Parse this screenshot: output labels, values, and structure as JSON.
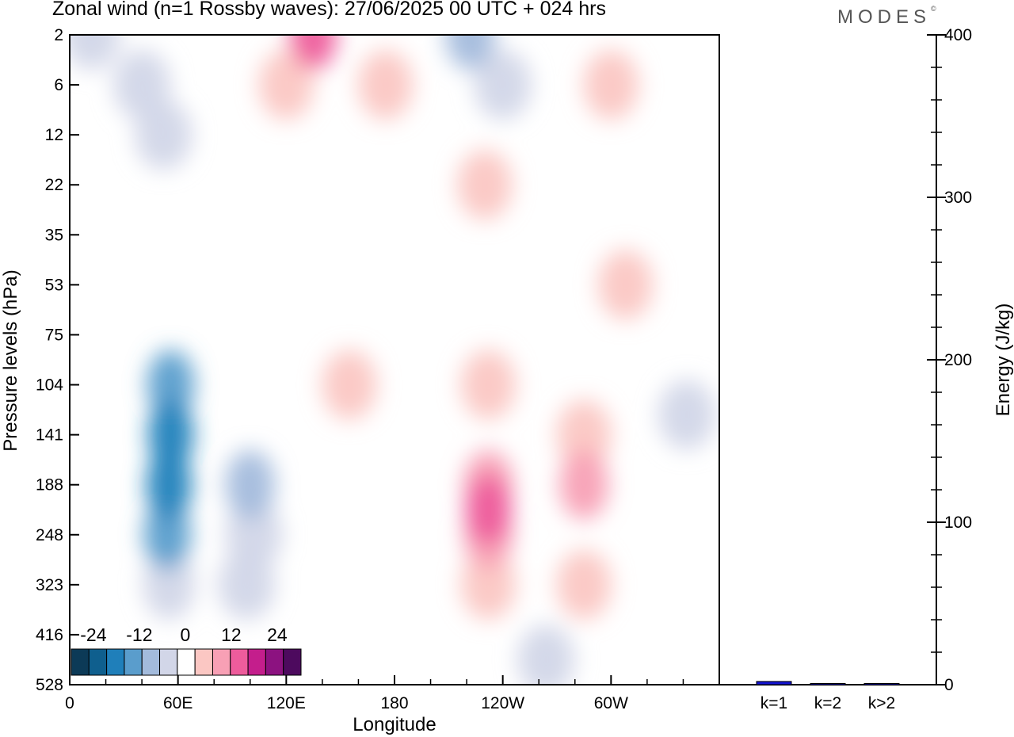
{
  "header": {
    "title": "Zonal wind (n=1 Rossby waves):  27/06/2025  00 UTC  + 024 hrs",
    "logo": "MODES",
    "logo_mark": "©"
  },
  "chart_data": [
    {
      "type": "heatmap",
      "title": "Zonal wind (n=1 Rossby waves):  27/06/2025  00 UTC  + 024 hrs",
      "xlabel": "Longitude",
      "ylabel": "Pressure levels (hPa)",
      "x_ticks": [
        "0",
        "60E",
        "120E",
        "180",
        "120W",
        "60W"
      ],
      "x_tick_values": [
        0,
        60,
        120,
        180,
        240,
        300
      ],
      "xlim": [
        0,
        360
      ],
      "y_ticks": [
        "2",
        "6",
        "12",
        "22",
        "35",
        "53",
        "75",
        "104",
        "141",
        "188",
        "248",
        "323",
        "416",
        "528"
      ],
      "y_scale": "level-index",
      "colorbar": {
        "labels": [
          "-24",
          "-12",
          "0",
          "12",
          "24"
        ],
        "levels": [
          -30,
          -25,
          -20,
          -15,
          -10,
          -5,
          5,
          10,
          15,
          20,
          25,
          30
        ],
        "colors": [
          "#0c3a57",
          "#0f5f8e",
          "#1f7fba",
          "#5a9dcc",
          "#a3bbdc",
          "#d2d6e8",
          "#ffffff",
          "#fbc7c3",
          "#f8a0b5",
          "#ee5c9c",
          "#c41e8c",
          "#8c1280",
          "#4d0a5e"
        ]
      },
      "cells": [
        {
          "lon": 12,
          "lev": 0,
          "value": -6
        },
        {
          "lon": 40,
          "lev": 1,
          "value": -6
        },
        {
          "lon": 52,
          "lev": 2,
          "value": -6
        },
        {
          "lon": 56,
          "lev": 8,
          "value": -23
        },
        {
          "lon": 55,
          "lev": 9,
          "value": -23
        },
        {
          "lon": 56,
          "lev": 7,
          "value": -16
        },
        {
          "lon": 54,
          "lev": 10,
          "value": -16
        },
        {
          "lon": 55,
          "lev": 11,
          "value": -9
        },
        {
          "lon": 100,
          "lev": 9,
          "value": -11
        },
        {
          "lon": 102,
          "lev": 10,
          "value": -6
        },
        {
          "lon": 98,
          "lev": 11,
          "value": -6
        },
        {
          "lon": 135,
          "lev": 0,
          "value": 17
        },
        {
          "lon": 120,
          "lev": 1,
          "value": 7
        },
        {
          "lon": 175,
          "lev": 1,
          "value": 7
        },
        {
          "lon": 222,
          "lev": 0,
          "value": -11
        },
        {
          "lon": 240,
          "lev": 1,
          "value": -6
        },
        {
          "lon": 300,
          "lev": 1,
          "value": 7
        },
        {
          "lon": 230,
          "lev": 3,
          "value": 7
        },
        {
          "lon": 308,
          "lev": 5,
          "value": 7
        },
        {
          "lon": 155,
          "lev": 7,
          "value": 7
        },
        {
          "lon": 232,
          "lev": 7,
          "value": 7
        },
        {
          "lon": 232,
          "lev": 9,
          "value": 12
        },
        {
          "lon": 232,
          "lev": 10,
          "value": 12
        },
        {
          "lon": 232,
          "lev": 11,
          "value": 7
        },
        {
          "lon": 232,
          "lev": 9.5,
          "value": 19
        },
        {
          "lon": 285,
          "lev": 8,
          "value": 7
        },
        {
          "lon": 285,
          "lev": 9,
          "value": 12
        },
        {
          "lon": 285,
          "lev": 11,
          "value": 7
        },
        {
          "lon": 342,
          "lev": 7.6,
          "value": -6
        },
        {
          "lon": 264,
          "lev": 12.5,
          "value": -6
        }
      ]
    },
    {
      "type": "bar",
      "ylabel": "Energy (J/kg)",
      "categories": [
        "k=1",
        "k=2",
        "k>2"
      ],
      "values": [
        2,
        0.3,
        0.3
      ],
      "ylim": [
        0,
        400
      ],
      "y_ticks": [
        "0",
        "100",
        "200",
        "300",
        "400"
      ],
      "color": "#1414d2"
    }
  ]
}
